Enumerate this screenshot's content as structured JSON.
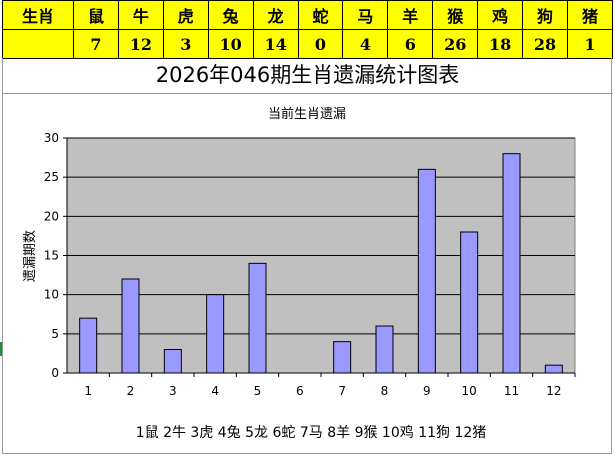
{
  "header_table": {
    "row_label_top": "生肖",
    "zodiacs": [
      "鼠",
      "牛",
      "虎",
      "兔",
      "龙",
      "蛇",
      "马",
      "羊",
      "猴",
      "鸡",
      "狗",
      "猪"
    ],
    "counts": [
      "7",
      "12",
      "3",
      "10",
      "14",
      "0",
      "4",
      "6",
      "26",
      "18",
      "28",
      "1"
    ]
  },
  "page_title": "2026年046期生肖遗漏统计图表",
  "chart_data": {
    "type": "bar",
    "title": "当前生肖遗漏",
    "ylabel": "遗漏期数",
    "xlabel": "",
    "categories": [
      "1",
      "2",
      "3",
      "4",
      "5",
      "6",
      "7",
      "8",
      "9",
      "10",
      "11",
      "12"
    ],
    "values": [
      7,
      12,
      3,
      10,
      14,
      0,
      4,
      6,
      26,
      18,
      28,
      1
    ],
    "ylim": [
      0,
      30
    ],
    "yticks": [
      0,
      5,
      10,
      15,
      20,
      25,
      30
    ],
    "grid": true,
    "bar_color": "#9999ff",
    "plot_background": "#c0c0c0",
    "legend_text": "1鼠 2牛 3虎 4兔 5龙 6蛇 7马 8羊 9猴 10鸡 11狗 12猪"
  }
}
